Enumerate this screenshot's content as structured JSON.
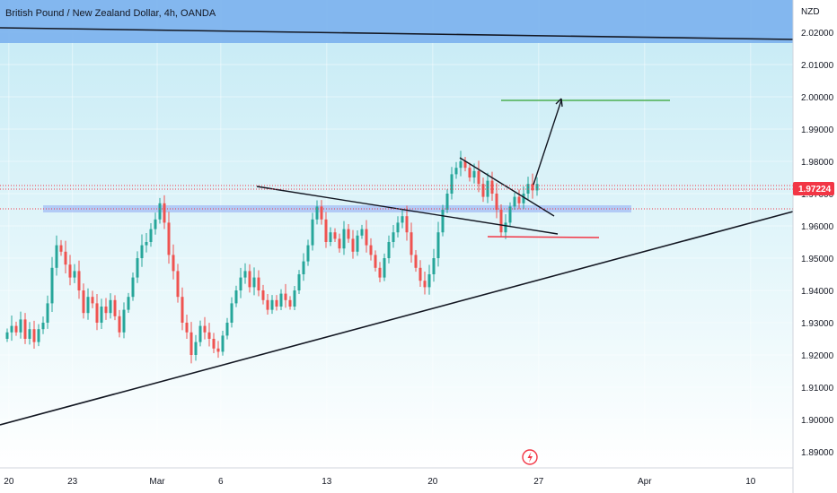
{
  "header": {
    "title": "British Pound / New Zealand Dollar, 4h, OANDA",
    "currency": "NZD"
  },
  "price_tag": {
    "value": "1.97224",
    "color": "#f23645"
  },
  "colors": {
    "up": "#26a69a",
    "down": "#ef5350",
    "grid": "#e0e3eb",
    "top_band": "#7fb4ee",
    "zone": "#90a8f0",
    "target_line": "#4caf50",
    "support_line": "#131722",
    "bg_top": "#c9ecf6",
    "bg_bottom": "#ffffff"
  },
  "chart_data": {
    "type": "candlestick",
    "symbol": "GBPNZD",
    "timeframe": "4h",
    "source": "OANDA",
    "ylim": [
      1.885,
      2.03
    ],
    "y_ticks": [
      1.89,
      1.9,
      1.91,
      1.92,
      1.93,
      1.94,
      1.95,
      1.96,
      1.97,
      1.98,
      1.99,
      2.0,
      2.01,
      2.02
    ],
    "y_tick_labels": [
      "1.89000",
      "1.90000",
      "1.91000",
      "1.92000",
      "1.93000",
      "1.94000",
      "1.95000",
      "1.96000",
      "1.97000",
      "1.98000",
      "1.99000",
      "2.00000",
      "2.01000",
      "2.02000"
    ],
    "x_ticks": [
      {
        "label": "20",
        "x": 0.0
      },
      {
        "label": "23",
        "x": 18.0
      },
      {
        "label": "Mar",
        "x": 42.0
      },
      {
        "label": "6",
        "x": 60.0
      },
      {
        "label": "13",
        "x": 90.0
      },
      {
        "label": "20",
        "x": 120.0
      },
      {
        "label": "27",
        "x": 150.0
      },
      {
        "label": "Apr",
        "x": 180.0
      },
      {
        "label": "10",
        "x": 210.0
      }
    ],
    "xlim": [
      -2.5,
      222.0
    ],
    "last_price": 1.97224,
    "candles_close": [
      1.927,
      1.929,
      1.927,
      1.931,
      1.925,
      1.928,
      1.924,
      1.928,
      1.93,
      1.936,
      1.947,
      1.954,
      1.952,
      1.948,
      1.944,
      1.946,
      1.94,
      1.933,
      1.938,
      1.936,
      1.93,
      1.935,
      1.933,
      1.937,
      1.932,
      1.927,
      1.934,
      1.938,
      1.944,
      1.95,
      1.954,
      1.955,
      1.959,
      1.962,
      1.967,
      1.961,
      1.951,
      1.946,
      1.938,
      1.93,
      1.927,
      1.92,
      1.924,
      1.929,
      1.927,
      1.925,
      1.922,
      1.921,
      1.926,
      1.93,
      1.936,
      1.94,
      1.944,
      1.946,
      1.941,
      1.944,
      1.94,
      1.937,
      1.934,
      1.937,
      1.935,
      1.939,
      1.937,
      1.935,
      1.94,
      1.945,
      1.949,
      1.954,
      1.962,
      1.966,
      1.962,
      1.955,
      1.958,
      1.956,
      1.953,
      1.959,
      1.956,
      1.952,
      1.957,
      1.959,
      1.954,
      1.951,
      1.947,
      1.944,
      1.95,
      1.955,
      1.958,
      1.961,
      1.963,
      1.958,
      1.951,
      1.947,
      1.943,
      1.941,
      1.945,
      1.95,
      1.958,
      1.965,
      1.97,
      1.976,
      1.978,
      1.98,
      1.978,
      1.975,
      1.977,
      1.973,
      1.969,
      1.974,
      1.97,
      1.965,
      1.958,
      1.961,
      1.966,
      1.969,
      1.967,
      1.97,
      1.973,
      1.971,
      1.973
    ]
  },
  "annotations": {
    "target_price": 1.998,
    "zone": [
      1.965,
      1.967
    ],
    "top_band_from": 2.017
  },
  "badge_icon": "lightning-icon"
}
